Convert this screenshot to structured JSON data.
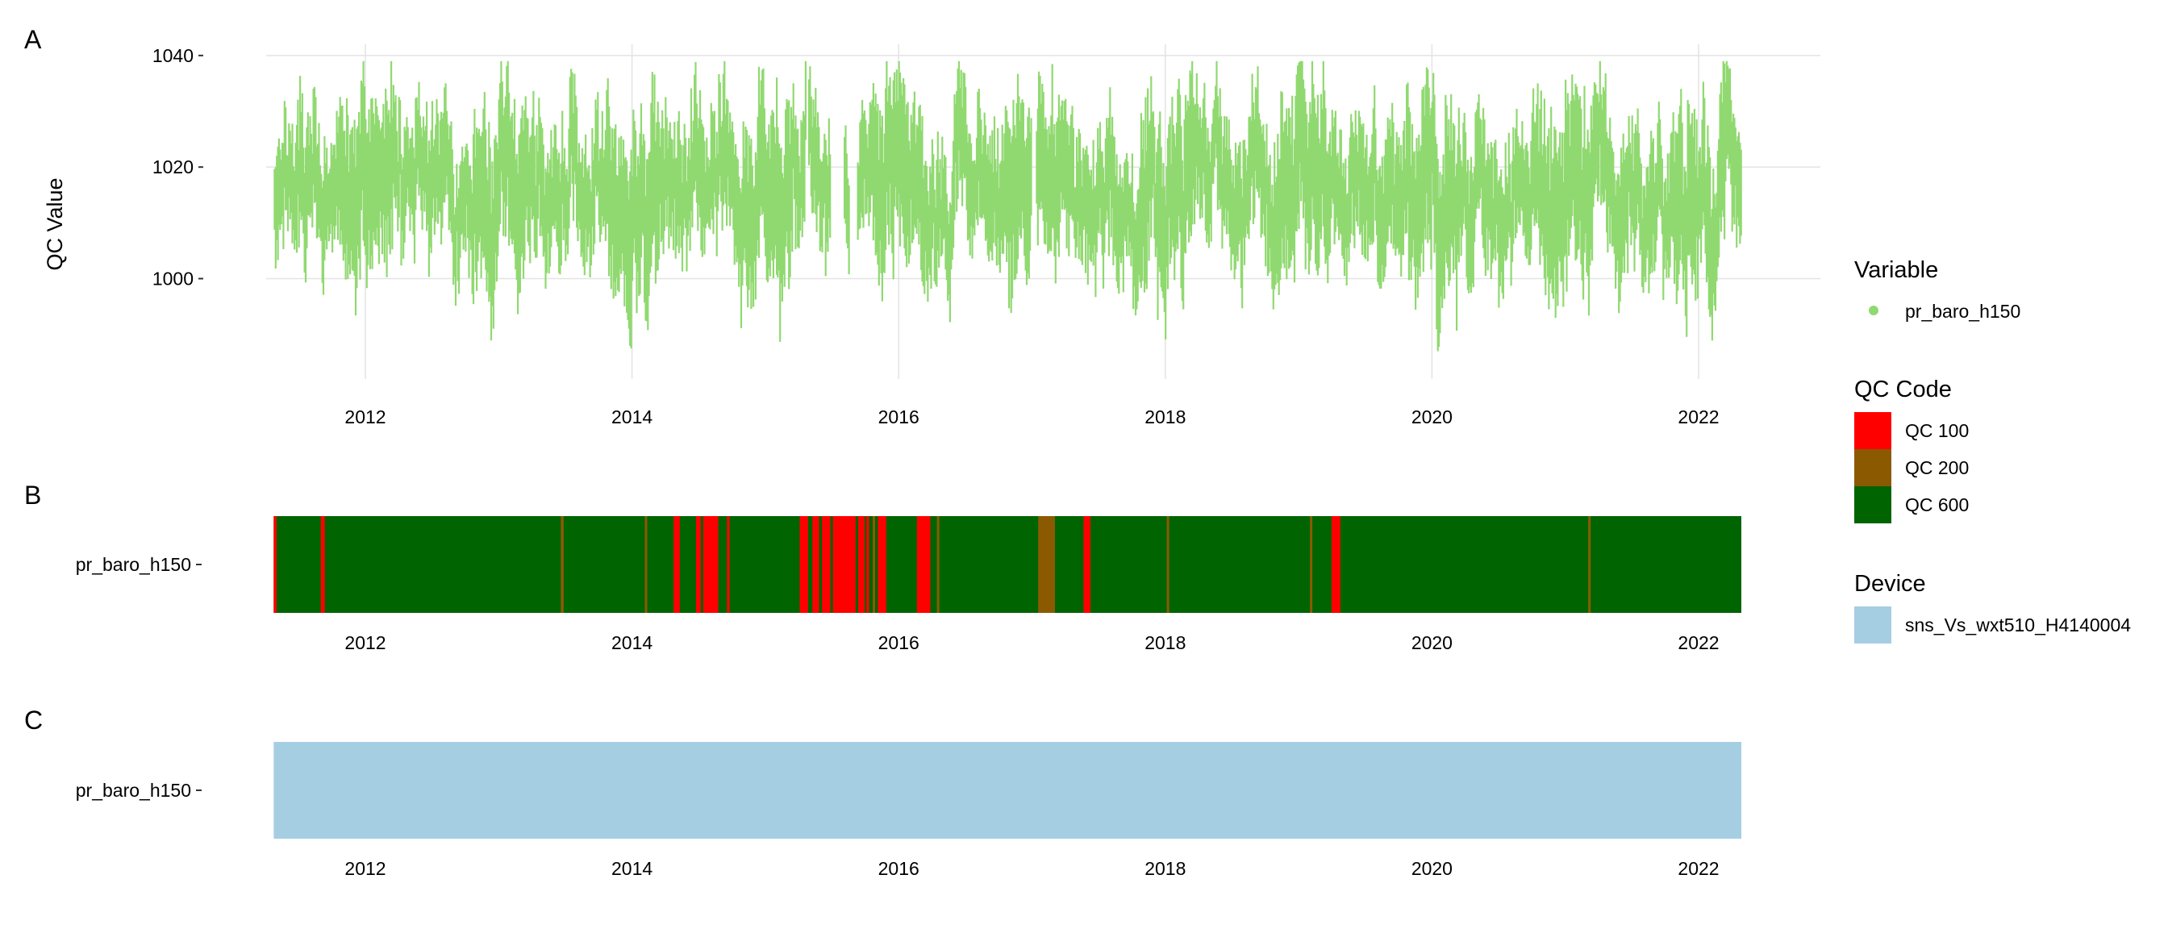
{
  "panel_labels": [
    "A",
    "B",
    "C"
  ],
  "colors": {
    "series": "#90d970",
    "grid": "#e3e3e3",
    "qc100": "#ff0000",
    "qc200": "#8b5a00",
    "qc600": "#006400",
    "device": "#a6cee3"
  },
  "legend": {
    "variable_title": "Variable",
    "variable_items": [
      "pr_baro_h150"
    ],
    "qc_title": "QC Code",
    "qc_items": [
      "QC 100",
      "QC 200",
      "QC 600"
    ],
    "device_title": "Device",
    "device_items": [
      "sns_Vs_wxt510_H4140004"
    ]
  },
  "chart_data": [
    {
      "panel": "A",
      "type": "scatter",
      "ylabel": "QC Value",
      "xlabel": "",
      "x_ticks": [
        "2012",
        "2014",
        "2016",
        "2018",
        "2020",
        "2022"
      ],
      "y_ticks": [
        "1000",
        "1020",
        "1040"
      ],
      "xlim": [
        "2011-03-01",
        "2022-07-01"
      ],
      "ylim": [
        982,
        1042
      ],
      "grid": true,
      "series": [
        {
          "name": "pr_baro_h150",
          "x_start": "2011-04-25",
          "x_end": "2022-04-28",
          "value_range": [
            985,
            1039
          ],
          "typical_range": [
            1003,
            1033
          ],
          "gaps": [
            [
              "2015-04-20",
              "2015-04-28"
            ],
            [
              "2015-06-25",
              "2015-08-03"
            ],
            [
              "2015-08-18",
              "2015-09-08"
            ],
            [
              "2016-12-28",
              "2017-01-10"
            ]
          ]
        }
      ]
    },
    {
      "panel": "B",
      "type": "heatmap",
      "y_categories": [
        "pr_baro_h150"
      ],
      "x_ticks": [
        "2012",
        "2014",
        "2016",
        "2018",
        "2020",
        "2022"
      ],
      "x_range": [
        "2011-04-25",
        "2022-04-28"
      ],
      "default_code": "QC 600",
      "segments": [
        {
          "code": "QC 100",
          "start": "2011-04-25",
          "end": "2011-05-03"
        },
        {
          "code": "QC 100",
          "start": "2011-09-01",
          "end": "2011-09-12"
        },
        {
          "code": "QC 200",
          "start": "2013-06-20",
          "end": "2013-06-28"
        },
        {
          "code": "QC 200",
          "start": "2014-02-05",
          "end": "2014-02-10"
        },
        {
          "code": "QC 100",
          "start": "2014-04-25",
          "end": "2014-05-12"
        },
        {
          "code": "QC 100",
          "start": "2014-06-25",
          "end": "2014-07-08"
        },
        {
          "code": "QC 100",
          "start": "2014-07-15",
          "end": "2014-08-25"
        },
        {
          "code": "QC 100",
          "start": "2014-09-18",
          "end": "2014-09-25"
        },
        {
          "code": "QC 100",
          "start": "2015-04-05",
          "end": "2015-04-28"
        },
        {
          "code": "QC 100",
          "start": "2015-05-10",
          "end": "2015-05-28"
        },
        {
          "code": "QC 100",
          "start": "2015-06-05",
          "end": "2015-06-28"
        },
        {
          "code": "QC 100",
          "start": "2015-07-05",
          "end": "2015-09-05"
        },
        {
          "code": "QC 100",
          "start": "2015-09-12",
          "end": "2015-09-30"
        },
        {
          "code": "QC 100",
          "start": "2015-10-05",
          "end": "2015-10-12"
        },
        {
          "code": "QC 200",
          "start": "2015-10-22",
          "end": "2015-10-28"
        },
        {
          "code": "QC 100",
          "start": "2015-11-05",
          "end": "2015-11-28"
        },
        {
          "code": "QC 100",
          "start": "2016-02-20",
          "end": "2016-03-28"
        },
        {
          "code": "QC 200",
          "start": "2016-04-15",
          "end": "2016-04-20"
        },
        {
          "code": "QC 200",
          "start": "2017-01-18",
          "end": "2017-03-05"
        },
        {
          "code": "QC 100",
          "start": "2017-05-22",
          "end": "2017-06-10"
        },
        {
          "code": "QC 200",
          "start": "2018-01-05",
          "end": "2018-01-10"
        },
        {
          "code": "QC 200",
          "start": "2019-02-01",
          "end": "2019-02-05"
        },
        {
          "code": "QC 100",
          "start": "2019-04-01",
          "end": "2019-04-25"
        },
        {
          "code": "QC 200",
          "start": "2021-03-05",
          "end": "2021-03-10"
        }
      ]
    },
    {
      "panel": "C",
      "type": "heatmap",
      "y_categories": [
        "pr_baro_h150"
      ],
      "x_ticks": [
        "2012",
        "2014",
        "2016",
        "2018",
        "2020",
        "2022"
      ],
      "x_range": [
        "2011-04-25",
        "2022-04-28"
      ],
      "device": "sns_Vs_wxt510_H4140004"
    }
  ]
}
